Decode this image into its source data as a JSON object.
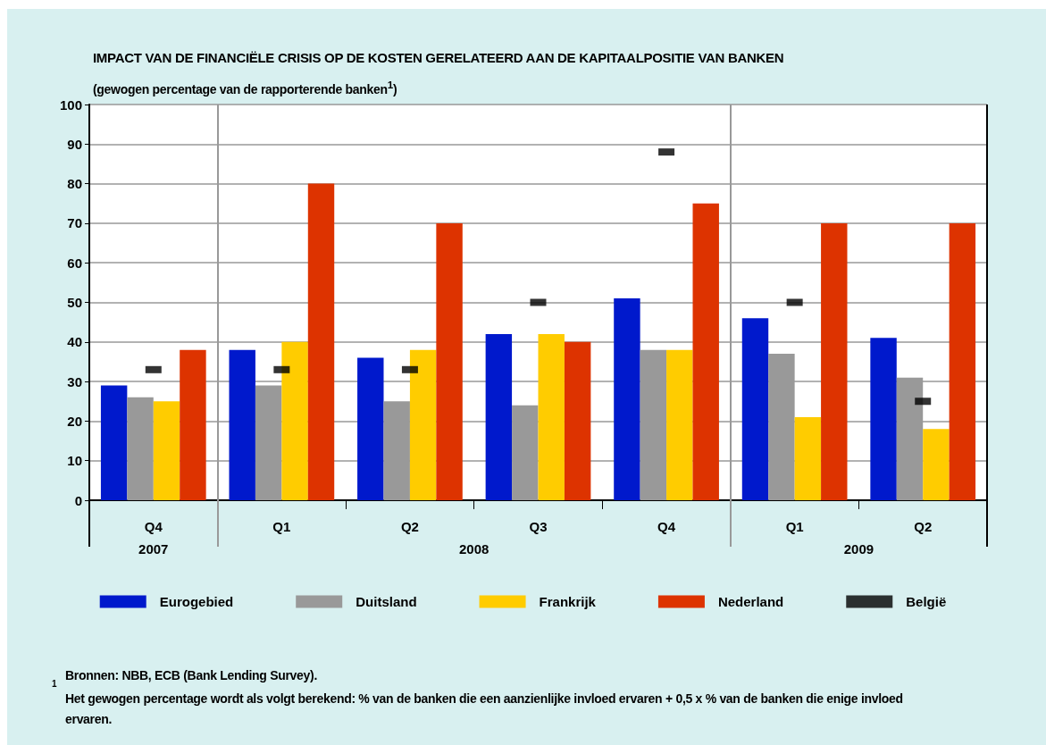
{
  "chart_data": {
    "type": "bar",
    "title": "IMPACT VAN DE FINANCIËLE CRISIS OP DE KOSTEN GERELATEERD AAN DE KAPITAALPOSITIE VAN BANKEN",
    "subtitle": "(gewogen percentage van de rapporterende banken$^{1}$)",
    "categories": [
      "Q4",
      "Q1",
      "Q2",
      "Q3",
      "Q4",
      "Q1",
      "Q2"
    ],
    "series": [
      {
        "name": "Eurogebied",
        "color": "#0019cc",
        "values": [
          29,
          38,
          36,
          42,
          51,
          46,
          41
        ]
      },
      {
        "name": "Duitsland",
        "color": "#999999",
        "values": [
          26,
          29,
          25,
          24,
          38,
          37,
          31
        ]
      },
      {
        "name": "Frankrijk",
        "color": "#ffcc00",
        "values": [
          25,
          40,
          38,
          42,
          38,
          21,
          18
        ]
      },
      {
        "name": "Nederland",
        "color": "#dd3300",
        "values": [
          38,
          80,
          70,
          40,
          75,
          70,
          70
        ]
      },
      {
        "name": "België",
        "color": "#000000",
        "type": "scatter",
        "values": [
          33,
          33,
          33,
          50,
          88,
          50,
          25
        ]
      }
    ],
    "marker": "square",
    "ylim": [
      0,
      100
    ],
    "yticks": [
      0,
      10,
      20,
      30,
      40,
      50,
      60,
      70,
      80,
      90,
      100
    ],
    "grid": "y",
    "legend": "bottom",
    "annotations": [
      "2007",
      "2008",
      "2009",
      "1",
      "Bronnen: NBB, ECB (Bank Lending Survey).",
      "Het gewogen percentage wordt als volgt berekend: % van de banken die een aanzienlijke invloed ervaren + 0,5 x % van de banken die enige invloed ervaren."
    ]
  }
}
